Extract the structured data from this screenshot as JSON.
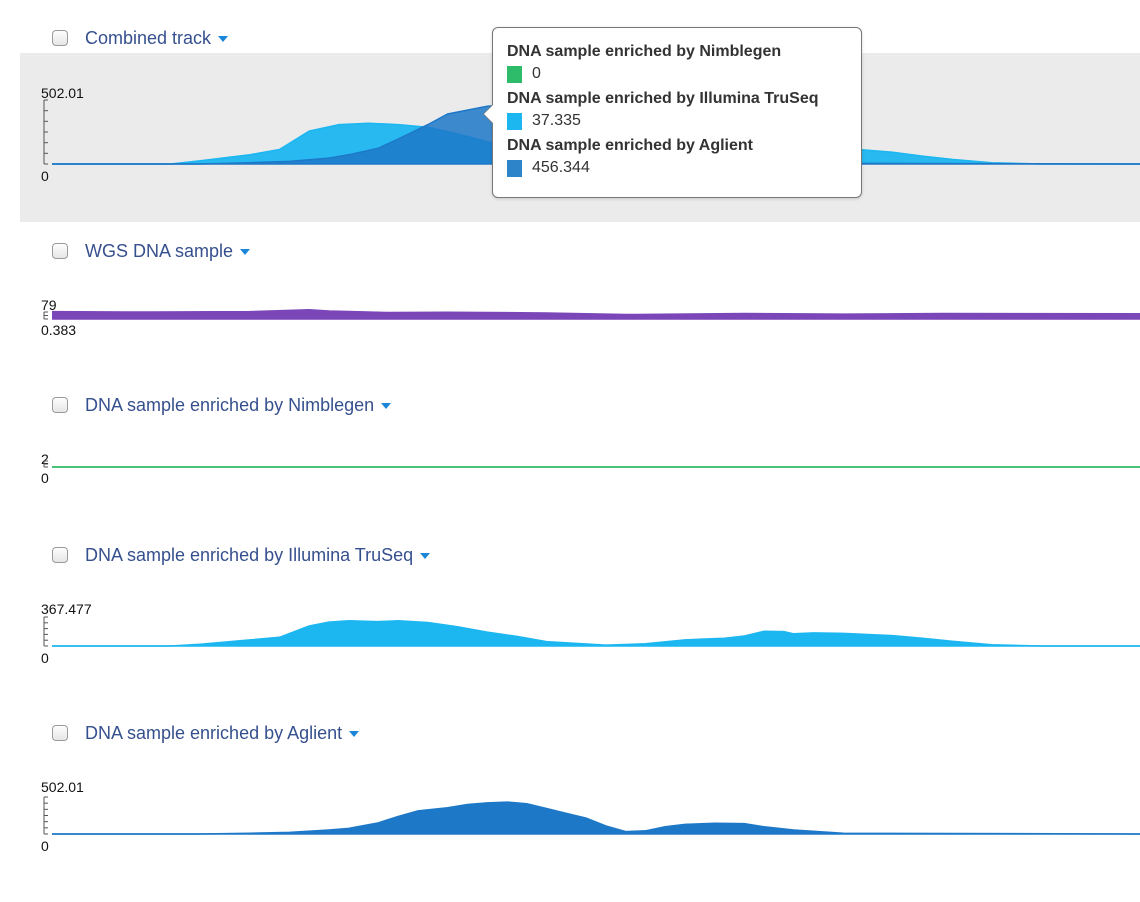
{
  "tracks": [
    {
      "name": "Combined track",
      "axis_max": "502.01",
      "axis_min": "0"
    },
    {
      "name": "WGS DNA sample",
      "axis_max": "79",
      "axis_min": "0.383"
    },
    {
      "name": "DNA sample enriched by Nimblegen",
      "axis_max": "2",
      "axis_min": "0"
    },
    {
      "name": "DNA sample enriched by Illumina TruSeq",
      "axis_max": "367.477",
      "axis_min": "0"
    },
    {
      "name": "DNA sample enriched by Aglient",
      "axis_max": "502.01",
      "axis_min": "0"
    }
  ],
  "tooltip": {
    "entries": [
      {
        "label": "DNA sample enriched by Nimblegen",
        "value": "0",
        "color": "#2ebb6a"
      },
      {
        "label": "DNA sample enriched by Illumina TruSeq",
        "value": "37.335",
        "color": "#1cb6f0"
      },
      {
        "label": "DNA sample enriched by Aglient",
        "value": "456.344",
        "color": "#2d84c8"
      }
    ]
  },
  "colors": {
    "wgs": "#7a46b8",
    "nimblegen": "#2ebb6a",
    "truseq": "#1cb6f0",
    "aglient": "#1e78c8",
    "header_text": "#36508e",
    "caret": "#1a86d9"
  },
  "chart_data": [
    {
      "type": "area",
      "name": "Combined track",
      "ylim": [
        0,
        502.01
      ],
      "series": [
        {
          "name": "DNA sample enriched by Illumina TruSeq",
          "x": [
            0,
            120,
            150,
            200,
            230,
            260,
            290,
            320,
            350,
            380,
            410,
            440,
            470,
            500,
            560,
            600,
            640,
            670,
            700,
            720,
            750,
            800,
            850,
            880,
            910,
            950,
            1000,
            1100
          ],
          "values": [
            0,
            0,
            25,
            70,
            110,
            250,
            300,
            310,
            300,
            280,
            230,
            170,
            110,
            50,
            10,
            20,
            60,
            80,
            100,
            150,
            120,
            120,
            90,
            60,
            35,
            10,
            0,
            0
          ]
        },
        {
          "name": "DNA sample enriched by Aglient",
          "x": [
            0,
            150,
            200,
            240,
            280,
            300,
            330,
            350,
            380,
            400,
            420,
            440,
            460,
            480,
            500,
            520,
            550,
            580,
            600,
            620,
            650,
            680,
            700,
            720,
            750,
            800,
            1100
          ],
          "values": [
            0,
            0,
            10,
            20,
            45,
            70,
            120,
            190,
            300,
            380,
            410,
            440,
            450,
            430,
            360,
            280,
            130,
            30,
            50,
            80,
            100,
            90,
            85,
            60,
            30,
            5,
            0
          ]
        }
      ]
    },
    {
      "type": "area",
      "name": "WGS DNA sample",
      "ylim": [
        0.383,
        79
      ],
      "series": [
        {
          "name": "WGS DNA sample",
          "x": [
            0,
            100,
            200,
            260,
            280,
            340,
            400,
            500,
            580,
            700,
            800,
            900,
            1100
          ],
          "values": [
            35,
            33,
            35,
            45,
            38,
            30,
            32,
            28,
            20,
            25,
            22,
            25,
            24
          ]
        }
      ]
    },
    {
      "type": "area",
      "name": "DNA sample enriched by Nimblegen",
      "ylim": [
        0,
        2
      ],
      "series": [
        {
          "name": "DNA sample enriched by Nimblegen",
          "x": [
            0,
            1100
          ],
          "values": [
            0,
            0
          ]
        }
      ]
    },
    {
      "type": "area",
      "name": "DNA sample enriched by Illumina TruSeq",
      "ylim": [
        0,
        367.477
      ],
      "series": [
        {
          "name": "DNA sample enriched by Illumina TruSeq",
          "x": [
            0,
            120,
            150,
            200,
            230,
            260,
            280,
            300,
            330,
            350,
            380,
            410,
            440,
            470,
            500,
            560,
            600,
            640,
            660,
            680,
            700,
            720,
            740,
            750,
            770,
            800,
            850,
            880,
            910,
            950,
            1000,
            1100
          ],
          "values": [
            0,
            0,
            20,
            70,
            100,
            230,
            275,
            290,
            280,
            290,
            270,
            220,
            160,
            110,
            50,
            10,
            25,
            70,
            80,
            90,
            115,
            170,
            165,
            140,
            150,
            145,
            120,
            90,
            55,
            15,
            0,
            0
          ]
        }
      ]
    },
    {
      "type": "area",
      "name": "DNA sample enriched by Aglient",
      "ylim": [
        0,
        502.01
      ],
      "series": [
        {
          "name": "DNA sample enriched by Aglient",
          "x": [
            0,
            150,
            200,
            240,
            280,
            300,
            330,
            350,
            370,
            400,
            420,
            440,
            460,
            480,
            500,
            520,
            540,
            560,
            580,
            600,
            620,
            640,
            670,
            700,
            720,
            750,
            800,
            1100
          ],
          "values": [
            0,
            0,
            10,
            20,
            50,
            70,
            140,
            220,
            290,
            330,
            370,
            390,
            400,
            380,
            320,
            260,
            200,
            100,
            30,
            40,
            90,
            120,
            135,
            130,
            90,
            50,
            10,
            0
          ]
        }
      ]
    }
  ]
}
